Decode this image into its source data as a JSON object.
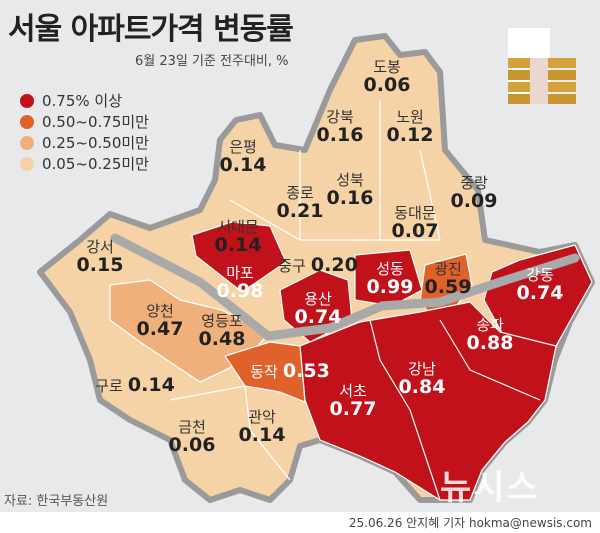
{
  "title": "서울 아파트가격 변동률",
  "subtitle": "6월 23일 기준 전주대비, %",
  "colors": {
    "high": "#c1121c",
    "mid": "#e0612a",
    "low": "#f0b07b",
    "min": "#f6d3a7",
    "background": "#e8e9eb"
  },
  "legend": [
    {
      "label": "0.75% 이상",
      "color": "#c1121c"
    },
    {
      "label": "0.50~0.75미만",
      "color": "#e0612a"
    },
    {
      "label": "0.25~0.50미만",
      "color": "#f0b07b"
    },
    {
      "label": "0.05~0.25미만",
      "color": "#f6d3a7"
    }
  ],
  "districts": [
    {
      "name": "도봉",
      "value": "0.06"
    },
    {
      "name": "강북",
      "value": "0.16"
    },
    {
      "name": "노원",
      "value": "0.12"
    },
    {
      "name": "은평",
      "value": "0.14"
    },
    {
      "name": "종로",
      "value": "0.21"
    },
    {
      "name": "성북",
      "value": "0.16"
    },
    {
      "name": "중랑",
      "value": "0.09"
    },
    {
      "name": "서대문",
      "value": "0.14"
    },
    {
      "name": "동대문",
      "value": "0.07"
    },
    {
      "name": "강서",
      "value": "0.15"
    },
    {
      "name": "마포",
      "value": "0.98"
    },
    {
      "name": "중구",
      "value": "0.20"
    },
    {
      "name": "성동",
      "value": "0.99"
    },
    {
      "name": "광진",
      "value": "0.59"
    },
    {
      "name": "강동",
      "value": "0.74"
    },
    {
      "name": "양천",
      "value": "0.47"
    },
    {
      "name": "영등포",
      "value": "0.48"
    },
    {
      "name": "용산",
      "value": "0.74"
    },
    {
      "name": "동작",
      "value": "0.53"
    },
    {
      "name": "구로",
      "value": "0.14"
    },
    {
      "name": "서초",
      "value": "0.77"
    },
    {
      "name": "강남",
      "value": "0.84"
    },
    {
      "name": "송파",
      "value": "0.88"
    },
    {
      "name": "금천",
      "value": "0.06"
    },
    {
      "name": "관악",
      "value": "0.14"
    }
  ],
  "source": "자료: 한국부동산원",
  "credit": "25.06.26 안지혜 기자 hokma@newsis.com",
  "logo": "뉴시스"
}
